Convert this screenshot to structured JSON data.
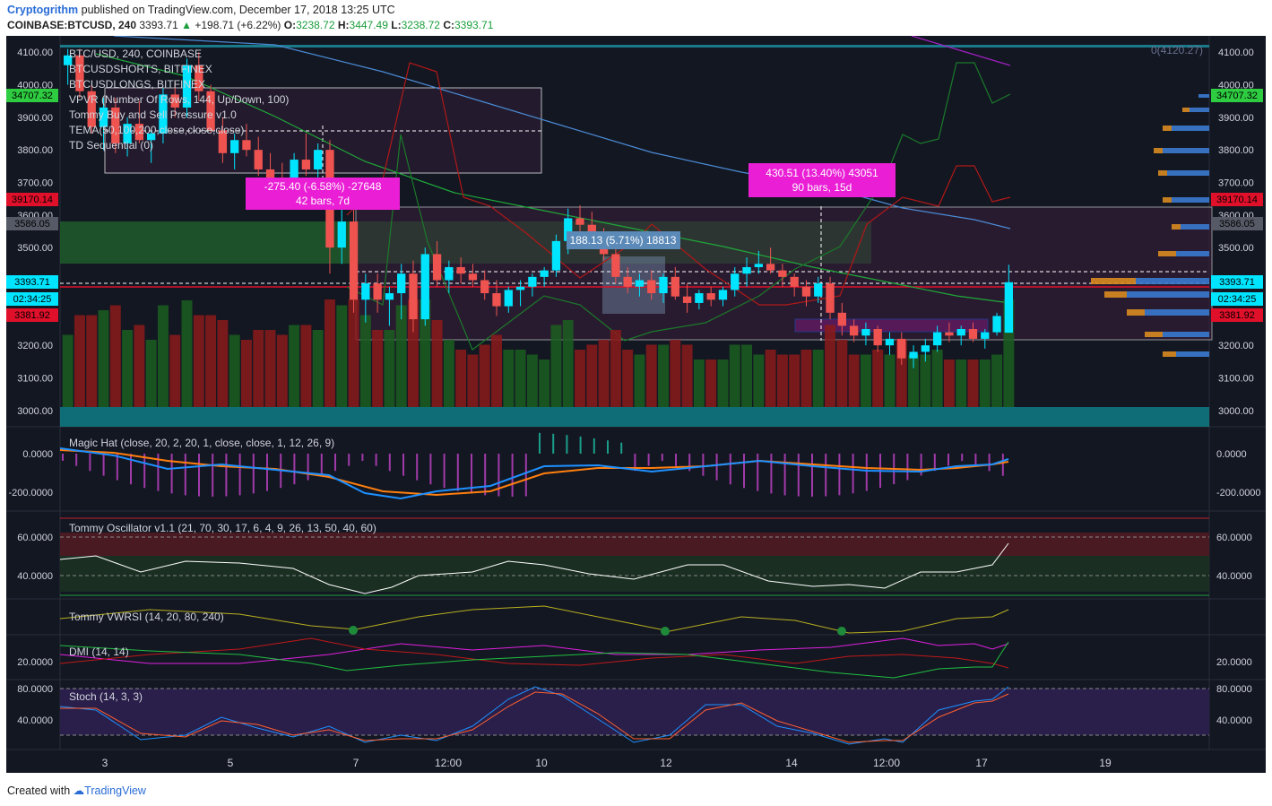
{
  "header": {
    "author": "Cryptogrithm",
    "published_text": "published on TradingView.com, December 17, 2018 13:25 UTC",
    "symbol": "COINBASE:BTCUSD, 240",
    "last": "3393.71",
    "change": "+198.71 (+6.22%)",
    "o_label": "O:",
    "o": "3238.72",
    "h_label": "H:",
    "h": "3447.49",
    "l_label": "L:",
    "l": "3238.72",
    "c_label": "C:",
    "c": "3393.71"
  },
  "footer": {
    "created_with": "Created with",
    "brand": "TradingView"
  },
  "colors": {
    "background": "#131722",
    "up": "#00e5ff",
    "down": "#ef5350",
    "vol_up": "#1b5e20",
    "vol_down": "#8b1a1a",
    "magenta": "#ff00ff",
    "green": "#22c55e",
    "blue": "#4285f4",
    "orange": "#ff7f0e"
  },
  "main_pane": {
    "overlays": [
      "BTC/USD, 240, COINBASE",
      "BTCUSDSHORTS, BITFINEX",
      "BTCUSDLONGS, BITFINEX",
      "VPVR (Number Of Rows, 144, Up/Down, 100)",
      "Tommy Buy and Sell Pressure v1.0",
      "TEMA(50,100,200,close,close,close)",
      "TD Sequential (0)"
    ],
    "y_ticks": [
      "4100.00",
      "4000.00",
      "3900.00",
      "3800.00",
      "3700.00",
      "3600.00",
      "3500.00",
      "3400.00",
      "3300.00",
      "3200.00",
      "3100.00",
      "3000.00"
    ],
    "top_right_label": "0(4120.27)",
    "left_badges": [
      {
        "text": "34707.32",
        "color": "#2ecc40"
      },
      {
        "text": "39170.14",
        "color": "#e0102a"
      },
      {
        "text": "3586.05",
        "color": "#555a66"
      },
      {
        "text": "3393.71",
        "color": "#00e5ff"
      },
      {
        "text": "02:34:25",
        "color": "#00e5ff"
      },
      {
        "text": "3381.92",
        "color": "#e0102a"
      }
    ],
    "right_badges": [
      {
        "text": "34707.32",
        "color": "#2ecc40"
      },
      {
        "text": "39170.14",
        "color": "#e0102a"
      },
      {
        "text": "3586.05",
        "color": "#555a66"
      },
      {
        "text": "3393.71",
        "color": "#00e5ff"
      },
      {
        "text": "02:34:25",
        "color": "#00e5ff"
      },
      {
        "text": "3381.92",
        "color": "#e0102a"
      }
    ],
    "measure_boxes": [
      {
        "line1": "-275.40 (-6.58%) -27648",
        "line2": "42 bars, 7d",
        "color": "#e91ed5"
      },
      {
        "line1": "188.13 (5.71%) 18813",
        "line2": "",
        "color": "#5b8ab8"
      },
      {
        "line1": "430.51 (13.40%) 43051",
        "line2": "90 bars, 15d",
        "color": "#e91ed5"
      }
    ]
  },
  "panes": {
    "magic_hat": {
      "label": "Magic Hat (close, 20, 2, 20, 1, close, close, 1, 12, 26, 9)",
      "ticks": [
        "0.0000",
        "-200.0000"
      ]
    },
    "tommy_osc": {
      "label": "Tommy Oscillator v1.1 (21, 70, 30, 17, 6, 4, 9, 26, 13, 50, 40, 60)",
      "ticks": [
        "60.0000",
        "40.0000"
      ]
    },
    "vwrsi": {
      "label": "Tommy VWRSI (14, 20, 80, 240)",
      "ticks": []
    },
    "dmi": {
      "label": "DMI (14, 14)",
      "ticks": [
        "20.0000"
      ]
    },
    "stoch": {
      "label": "Stoch (14, 3, 3)",
      "ticks": [
        "80.0000",
        "40.0000"
      ]
    }
  },
  "x_axis": {
    "ticks": [
      "3",
      "5",
      "7",
      "12:00",
      "10",
      "12",
      "14",
      "12:00",
      "17",
      "19"
    ]
  },
  "chart_data": {
    "type": "candlestick",
    "title": "BTC/USD, 240, COINBASE",
    "interval": "240",
    "ylim": [
      2950,
      4150
    ],
    "x_axis_ticks": [
      "3",
      "5",
      "7",
      "12:00",
      "10",
      "12",
      "14",
      "12:00",
      "17",
      "19"
    ],
    "ohlc_approx": [
      [
        4060,
        4110,
        4000,
        4090
      ],
      [
        4090,
        4110,
        3960,
        3980
      ],
      [
        3980,
        4000,
        3850,
        3870
      ],
      [
        3870,
        3960,
        3800,
        3930
      ],
      [
        3930,
        3960,
        3790,
        3820
      ],
      [
        3820,
        3900,
        3780,
        3880
      ],
      [
        3880,
        3950,
        3820,
        3830
      ],
      [
        3830,
        3860,
        3760,
        3850
      ],
      [
        3850,
        3990,
        3820,
        3970
      ],
      [
        3970,
        4010,
        3900,
        3930
      ],
      [
        3930,
        4080,
        3900,
        4060
      ],
      [
        4060,
        4100,
        3950,
        3980
      ],
      [
        3980,
        4000,
        3850,
        3860
      ],
      [
        3860,
        3900,
        3760,
        3790
      ],
      [
        3790,
        3850,
        3740,
        3830
      ],
      [
        3830,
        3880,
        3780,
        3800
      ],
      [
        3800,
        3840,
        3720,
        3740
      ],
      [
        3740,
        3790,
        3670,
        3700
      ],
      [
        3700,
        3760,
        3650,
        3680
      ],
      [
        3680,
        3790,
        3660,
        3770
      ],
      [
        3770,
        3850,
        3720,
        3740
      ],
      [
        3740,
        3820,
        3700,
        3800
      ],
      [
        3800,
        3830,
        3420,
        3500
      ],
      [
        3500,
        3620,
        3450,
        3580
      ],
      [
        3580,
        3650,
        3300,
        3340
      ],
      [
        3340,
        3420,
        3270,
        3390
      ],
      [
        3390,
        3420,
        3300,
        3340
      ],
      [
        3340,
        3380,
        3260,
        3360
      ],
      [
        3360,
        3450,
        3280,
        3420
      ],
      [
        3420,
        3460,
        3240,
        3280
      ],
      [
        3280,
        3500,
        3260,
        3480
      ],
      [
        3480,
        3520,
        3380,
        3400
      ],
      [
        3400,
        3460,
        3360,
        3440
      ],
      [
        3440,
        3470,
        3390,
        3420
      ],
      [
        3420,
        3450,
        3380,
        3400
      ],
      [
        3400,
        3430,
        3340,
        3360
      ],
      [
        3360,
        3400,
        3290,
        3320
      ],
      [
        3320,
        3380,
        3300,
        3370
      ],
      [
        3370,
        3400,
        3320,
        3380
      ],
      [
        3380,
        3420,
        3350,
        3410
      ],
      [
        3410,
        3440,
        3380,
        3430
      ],
      [
        3430,
        3540,
        3410,
        3520
      ],
      [
        3520,
        3620,
        3480,
        3590
      ],
      [
        3590,
        3630,
        3550,
        3570
      ],
      [
        3570,
        3610,
        3520,
        3540
      ],
      [
        3540,
        3560,
        3460,
        3480
      ],
      [
        3480,
        3510,
        3390,
        3410
      ],
      [
        3410,
        3440,
        3360,
        3380
      ],
      [
        3380,
        3420,
        3350,
        3400
      ],
      [
        3400,
        3430,
        3340,
        3360
      ],
      [
        3360,
        3420,
        3330,
        3410
      ],
      [
        3410,
        3440,
        3340,
        3350
      ],
      [
        3350,
        3390,
        3300,
        3330
      ],
      [
        3330,
        3370,
        3310,
        3360
      ],
      [
        3360,
        3380,
        3320,
        3340
      ],
      [
        3340,
        3380,
        3320,
        3370
      ],
      [
        3370,
        3440,
        3350,
        3420
      ],
      [
        3420,
        3470,
        3380,
        3440
      ],
      [
        3440,
        3490,
        3420,
        3450
      ],
      [
        3450,
        3500,
        3420,
        3430
      ],
      [
        3430,
        3450,
        3380,
        3410
      ],
      [
        3410,
        3420,
        3350,
        3380
      ],
      [
        3380,
        3400,
        3320,
        3350
      ],
      [
        3350,
        3410,
        3330,
        3390
      ],
      [
        3390,
        3410,
        3280,
        3300
      ],
      [
        3300,
        3330,
        3230,
        3260
      ],
      [
        3260,
        3280,
        3210,
        3230
      ],
      [
        3230,
        3270,
        3200,
        3250
      ],
      [
        3250,
        3260,
        3180,
        3200
      ],
      [
        3200,
        3240,
        3170,
        3220
      ],
      [
        3220,
        3240,
        3140,
        3160
      ],
      [
        3160,
        3200,
        3130,
        3180
      ],
      [
        3180,
        3220,
        3150,
        3200
      ],
      [
        3200,
        3260,
        3180,
        3240
      ],
      [
        3240,
        3270,
        3210,
        3230
      ],
      [
        3230,
        3260,
        3200,
        3250
      ],
      [
        3250,
        3270,
        3210,
        3220
      ],
      [
        3220,
        3250,
        3190,
        3240
      ],
      [
        3240,
        3300,
        3230,
        3290
      ],
      [
        3238.72,
        3447.49,
        3238.72,
        3393.71
      ]
    ]
  }
}
